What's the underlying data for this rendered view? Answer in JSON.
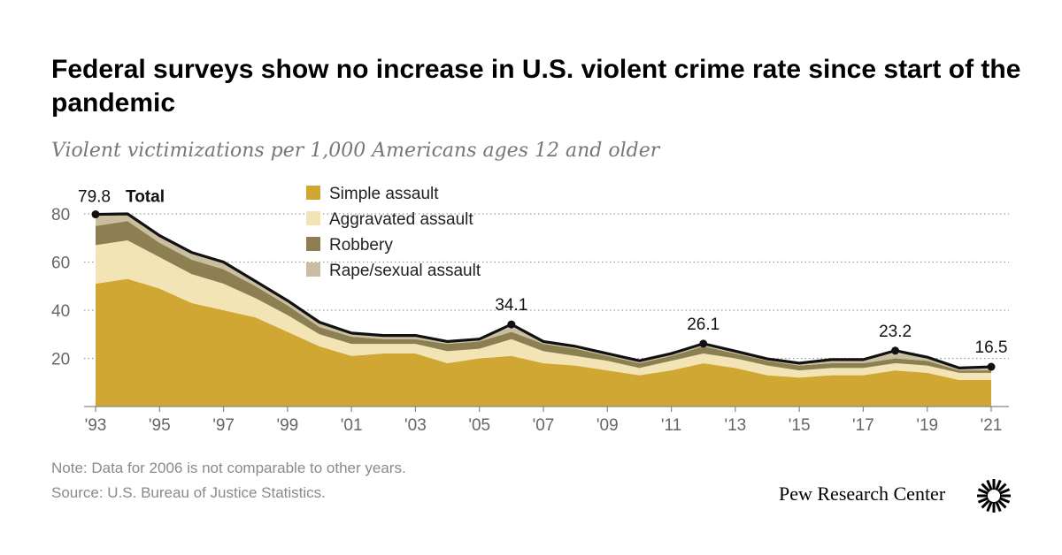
{
  "title": "Federal surveys show no increase in U.S. violent crime rate since start of the pandemic",
  "subtitle": "Violent victimizations per 1,000 Americans ages 12 and older",
  "note": "Note: Data for 2006 is not comparable to other years.",
  "source": "Source: U.S. Bureau of Justice Statistics.",
  "brand": "Pew Research Center",
  "brand_icon": "pew-sunburst-logo-icon",
  "chart_data": {
    "type": "area",
    "stacked": true,
    "x": [
      1993,
      1994,
      1995,
      1996,
      1997,
      1998,
      1999,
      2000,
      2001,
      2002,
      2003,
      2004,
      2005,
      2006,
      2007,
      2008,
      2009,
      2010,
      2011,
      2012,
      2013,
      2014,
      2015,
      2016,
      2017,
      2018,
      2019,
      2020,
      2021
    ],
    "x_tick_labels": [
      "'93",
      "'95",
      "'97",
      "'99",
      "'01",
      "'03",
      "'05",
      "'07",
      "'09",
      "'11",
      "'13",
      "'15",
      "'17",
      "'19",
      "'21"
    ],
    "x_tick_values": [
      1993,
      1995,
      1997,
      1999,
      2001,
      2003,
      2005,
      2007,
      2009,
      2011,
      2013,
      2015,
      2017,
      2019,
      2021
    ],
    "ylim": [
      0,
      80
    ],
    "y_ticks": [
      20,
      40,
      60,
      80
    ],
    "grid": true,
    "legend_position": "top-center",
    "series": [
      {
        "name": "Simple assault",
        "color": "#d1a734",
        "values": [
          51,
          53,
          49,
          43,
          40,
          37,
          31,
          25,
          21,
          22,
          22,
          18,
          20,
          21,
          18,
          17,
          15,
          13,
          15,
          18,
          16,
          13,
          12,
          13,
          13,
          15,
          14,
          11,
          11
        ]
      },
      {
        "name": "Aggravated assault",
        "color": "#f2e4b4",
        "values": [
          16,
          16,
          13,
          12,
          11,
          8,
          7,
          5,
          5,
          4,
          4,
          5,
          4,
          7,
          5,
          4,
          4,
          3,
          4,
          4,
          4,
          4,
          3,
          3,
          3,
          3,
          3,
          3,
          3
        ]
      },
      {
        "name": "Robbery",
        "color": "#8c8053",
        "values": [
          8,
          8,
          6,
          6,
          6,
          5,
          4,
          3,
          3,
          2,
          2,
          3,
          3,
          3,
          3,
          3,
          2,
          2,
          2,
          3,
          2,
          2,
          2,
          2,
          2,
          2,
          2,
          1,
          1
        ]
      },
      {
        "name": "Rape/sexual assault",
        "color": "#c9bfa0",
        "values": [
          4.8,
          3,
          3,
          3,
          3,
          2,
          2,
          2,
          1.5,
          1.5,
          1.5,
          1,
          1,
          2.1,
          1,
          1,
          1,
          1,
          1,
          1.1,
          1,
          0.8,
          1,
          1.5,
          1.5,
          2.2,
          1.5,
          1,
          1.5
        ]
      }
    ],
    "total": {
      "name": "Total",
      "color": "#111111",
      "values": [
        79.8,
        80,
        71,
        64,
        60,
        52,
        44,
        35,
        30.5,
        29.5,
        29.5,
        27,
        28,
        34.1,
        27,
        25,
        22,
        19,
        22,
        26.1,
        23,
        19.8,
        18,
        19.5,
        19.5,
        23.2,
        20.5,
        16,
        16.5
      ]
    },
    "annotations": [
      {
        "x": 1993,
        "y": 79.8,
        "text": "79.8",
        "extra": "Total"
      },
      {
        "x": 2006,
        "y": 34.1,
        "text": "34.1"
      },
      {
        "x": 2012,
        "y": 26.1,
        "text": "26.1"
      },
      {
        "x": 2018,
        "y": 23.2,
        "text": "23.2"
      },
      {
        "x": 2021,
        "y": 16.5,
        "text": "16.5"
      }
    ]
  }
}
